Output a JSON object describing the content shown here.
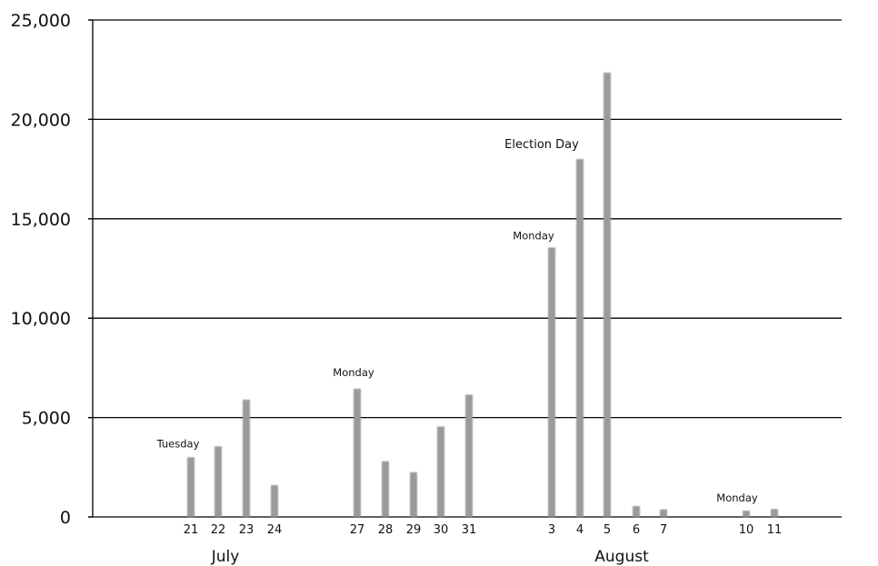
{
  "chart_data": {
    "type": "bar",
    "ylim": [
      0,
      25000
    ],
    "yticks": [
      0,
      5000,
      10000,
      15000,
      20000,
      25000
    ],
    "ytick_labels": [
      "0",
      "5,000",
      "10,000",
      "15,000",
      "20,000",
      "25,000"
    ],
    "grid": true,
    "bar_color": "#9a9a9a",
    "categories": [
      "21",
      "22",
      "23",
      "24",
      "27",
      "28",
      "29",
      "30",
      "31",
      "3",
      "4",
      "5",
      "6",
      "7",
      "10",
      "11"
    ],
    "values": [
      3000,
      3550,
      5900,
      1600,
      6450,
      2800,
      2250,
      4550,
      6150,
      13550,
      18000,
      22350,
      550,
      380,
      320,
      400
    ],
    "months": [
      {
        "label": "July"
      },
      {
        "label": "August"
      }
    ],
    "annotations": [
      {
        "text": "Tuesday",
        "category": "21"
      },
      {
        "text": "Monday",
        "category": "27"
      },
      {
        "text": "Monday",
        "category": "3"
      },
      {
        "text": "Election Day",
        "category": "4"
      },
      {
        "text": "Monday",
        "category": "10"
      }
    ]
  }
}
